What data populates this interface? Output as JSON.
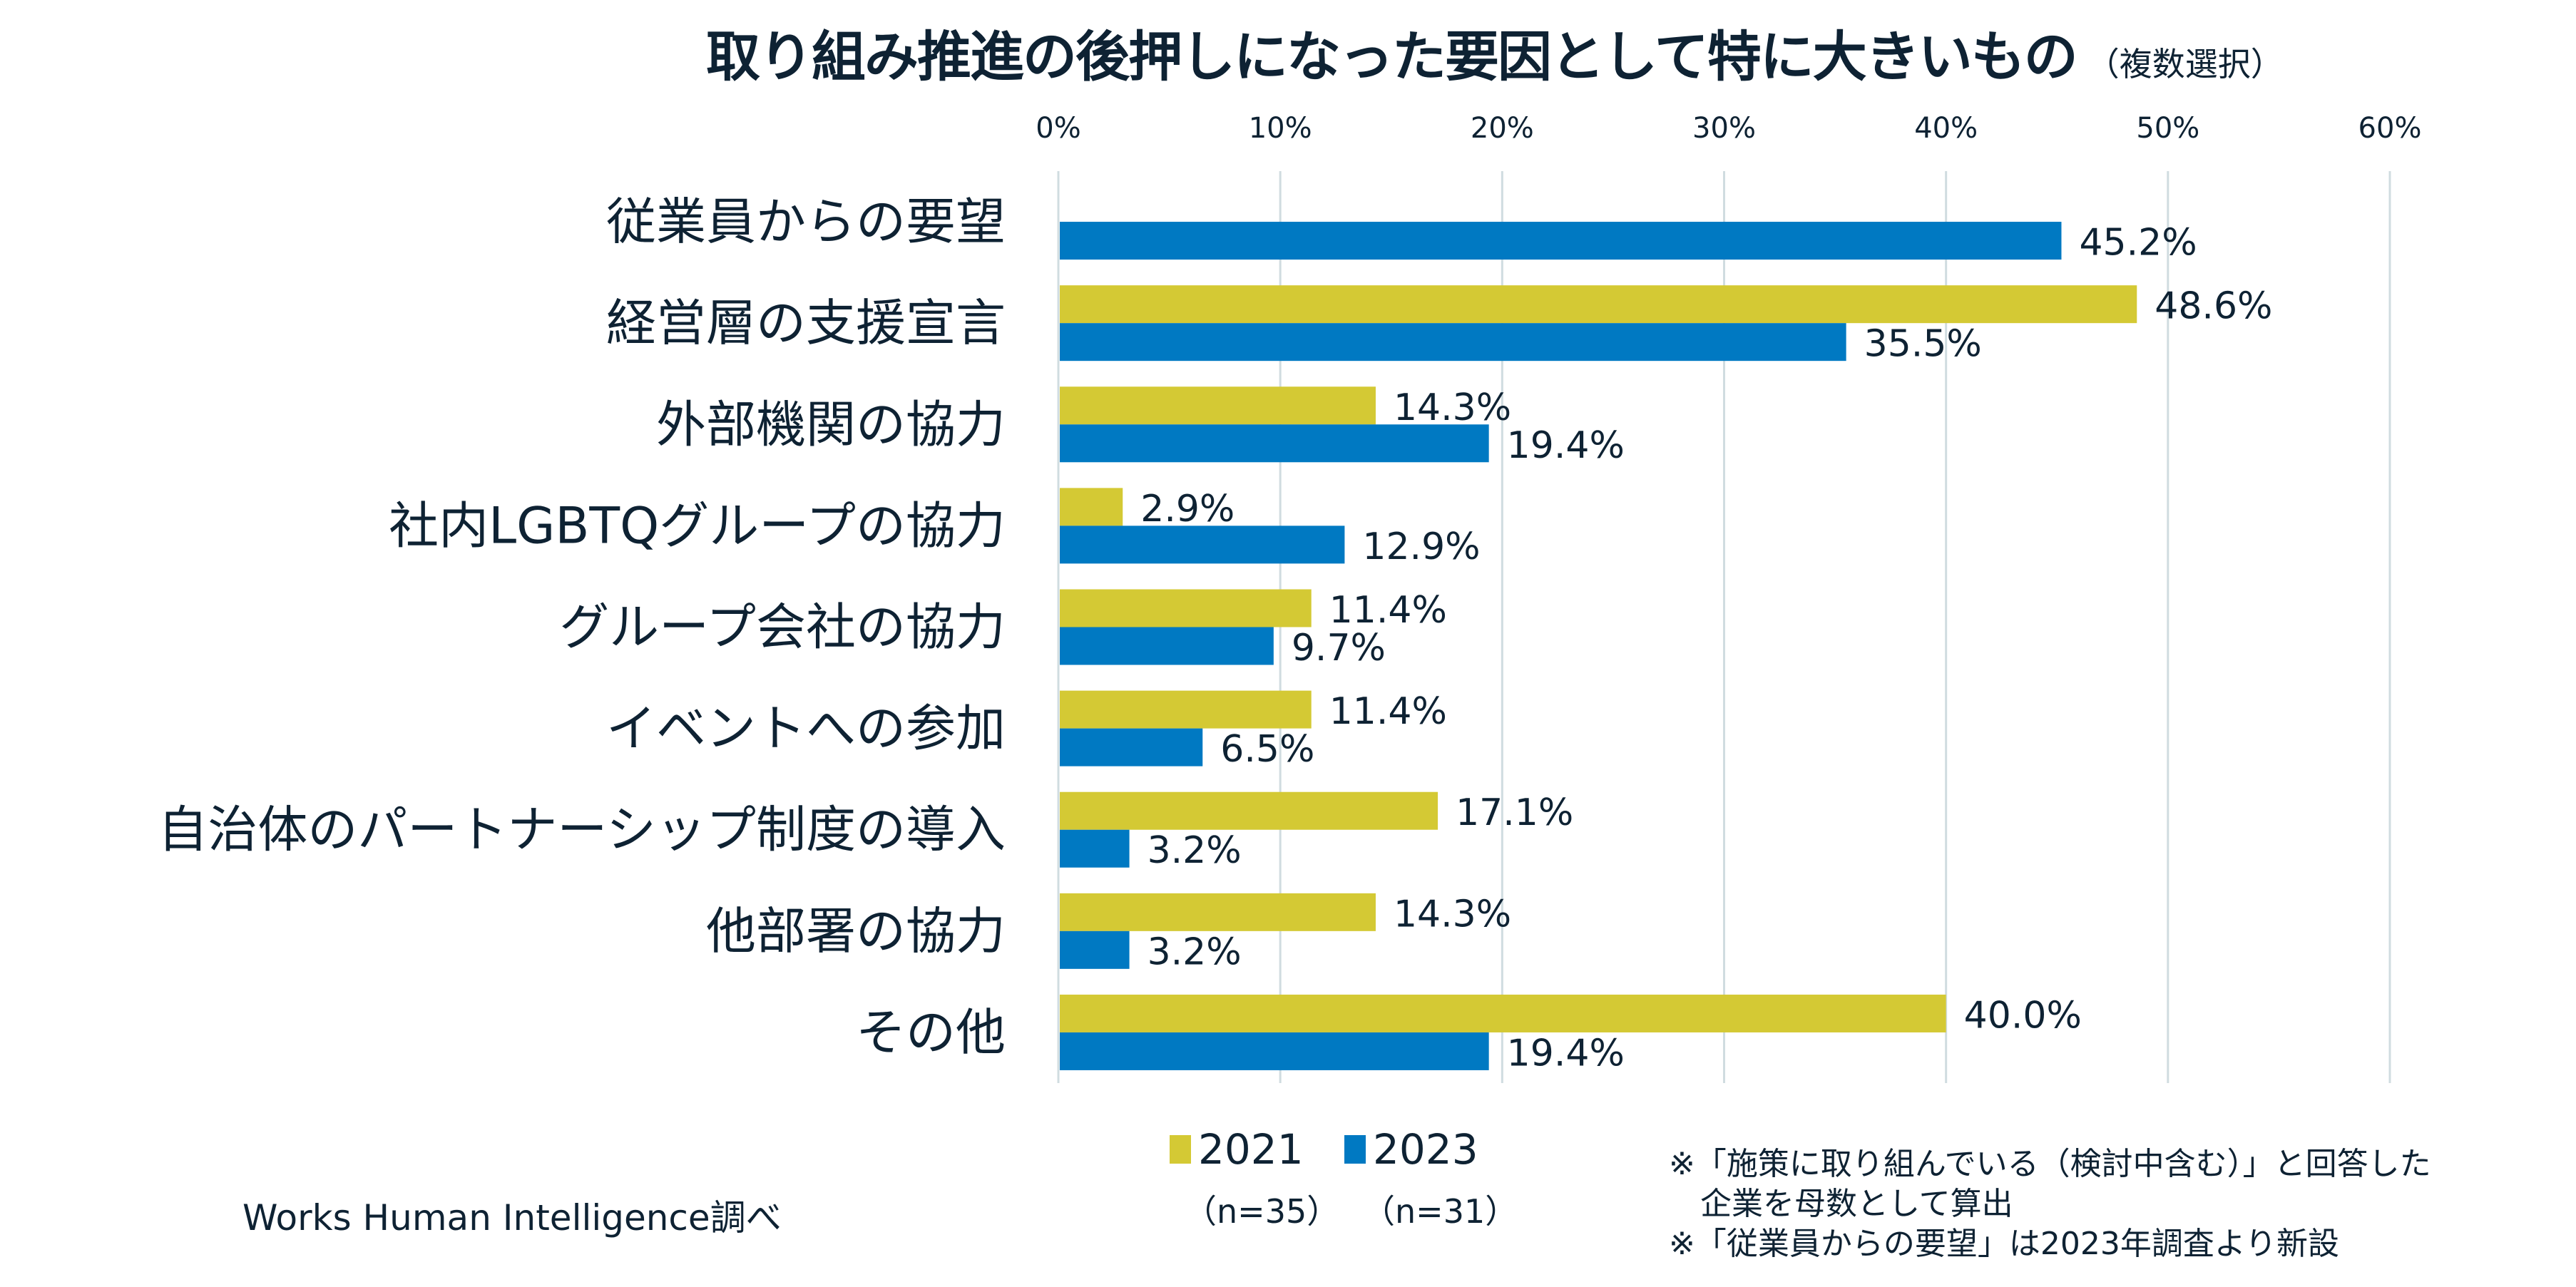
{
  "title": {
    "main": "取り組み推進の後押しになった要因として特に大きいもの",
    "sub": "（複数選択）"
  },
  "chart_data": {
    "type": "bar",
    "orientation": "horizontal",
    "title": "取り組み推進の後押しになった要因として特に大きいもの（複数選択）",
    "categories": [
      "従業員からの要望",
      "経営層の支援宣言",
      "外部機関の協力",
      "社内LGBTQグループの協力",
      "グループ会社の協力",
      "イベントへの参加",
      "自治体のパートナーシップ制度の導入",
      "他部署の協力",
      "その他"
    ],
    "series": [
      {
        "name": "2021",
        "n_label": "（n=35）",
        "color": "#d4c934",
        "values": [
          null,
          48.6,
          14.3,
          2.9,
          11.4,
          11.4,
          17.1,
          14.3,
          40.0
        ],
        "labels": [
          "",
          "48.6%",
          "14.3%",
          "2.9%",
          "11.4%",
          "11.4%",
          "17.1%",
          "14.3%",
          "40.0%"
        ]
      },
      {
        "name": "2023",
        "n_label": "（n=31）",
        "color": "#0079c2",
        "values": [
          45.2,
          35.5,
          19.4,
          12.9,
          9.7,
          6.5,
          3.2,
          3.2,
          19.4
        ],
        "labels": [
          "45.2%",
          "35.5%",
          "19.4%",
          "12.9%",
          "9.7%",
          "6.5%",
          "3.2%",
          "3.2%",
          "19.4%"
        ]
      }
    ],
    "xlim": [
      0,
      60
    ],
    "xticks": [
      0,
      10,
      20,
      30,
      40,
      50,
      60
    ],
    "xtick_labels": [
      "0%",
      "10%",
      "20%",
      "30%",
      "40%",
      "50%",
      "60%"
    ],
    "xlabel": "",
    "ylabel": "",
    "grid": "vertical",
    "legend_position": "bottom",
    "grid_color": "#d0dce0"
  },
  "notes": [
    "※「施策に取り組んでいる（検討中含む）」と回答した",
    "　企業を母数として算出",
    "※「従業員からの要望」は2023年調査より新設"
  ],
  "source": "Works Human Intelligence調べ"
}
